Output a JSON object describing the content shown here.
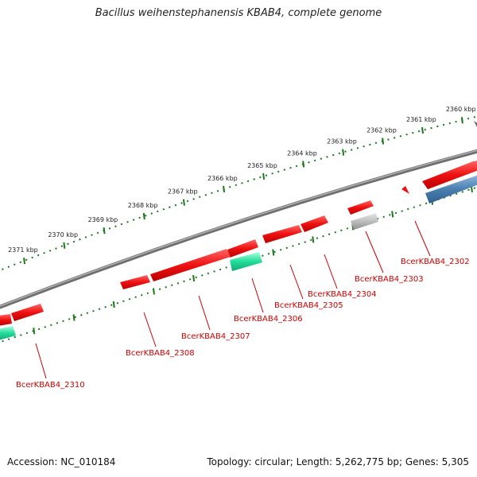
{
  "title": "Bacillus weihenstephanensis KBAB4, complete genome",
  "footer": {
    "accession": "Accession: NC_010184",
    "topology": "Topology: circular; Length: 5,262,775 bp; Genes: 5,305"
  },
  "colors": {
    "backbone": "#7a7a7a",
    "gene_red": "#ee1111",
    "gene_green": "#22dd99",
    "gene_grey": "#b0b0b0",
    "gene_blue": "#4a7fb0",
    "tick": "#1a7a1a",
    "label": "#cc0000"
  },
  "scale": {
    "ticks": [
      {
        "label": "2360 kbp"
      },
      {
        "label": "2361 kbp"
      },
      {
        "label": "2362 kbp"
      },
      {
        "label": "2363 kbp"
      },
      {
        "label": "2364 kbp"
      },
      {
        "label": "2365 kbp"
      },
      {
        "label": "2366 kbp"
      },
      {
        "label": "2367 kbp"
      },
      {
        "label": "2368 kbp"
      },
      {
        "label": "2369 kbp"
      },
      {
        "label": "2370 kbp"
      },
      {
        "label": "2371 kbp"
      }
    ]
  },
  "genes": [
    {
      "label": "BcerKBAB4_2302",
      "kind": "red"
    },
    {
      "label": "BcerKBAB4_2303",
      "kind": "grey"
    },
    {
      "label": "BcerKBAB4_2304",
      "kind": "red"
    },
    {
      "label": "BcerKBAB4_2305",
      "kind": "red"
    },
    {
      "label": "BcerKBAB4_2306",
      "kind": "green"
    },
    {
      "label": "BcerKBAB4_2307",
      "kind": "red"
    },
    {
      "label": "BcerKBAB4_2308",
      "kind": "red"
    },
    {
      "label": "BcerKBAB4_2310",
      "kind": "red"
    }
  ]
}
